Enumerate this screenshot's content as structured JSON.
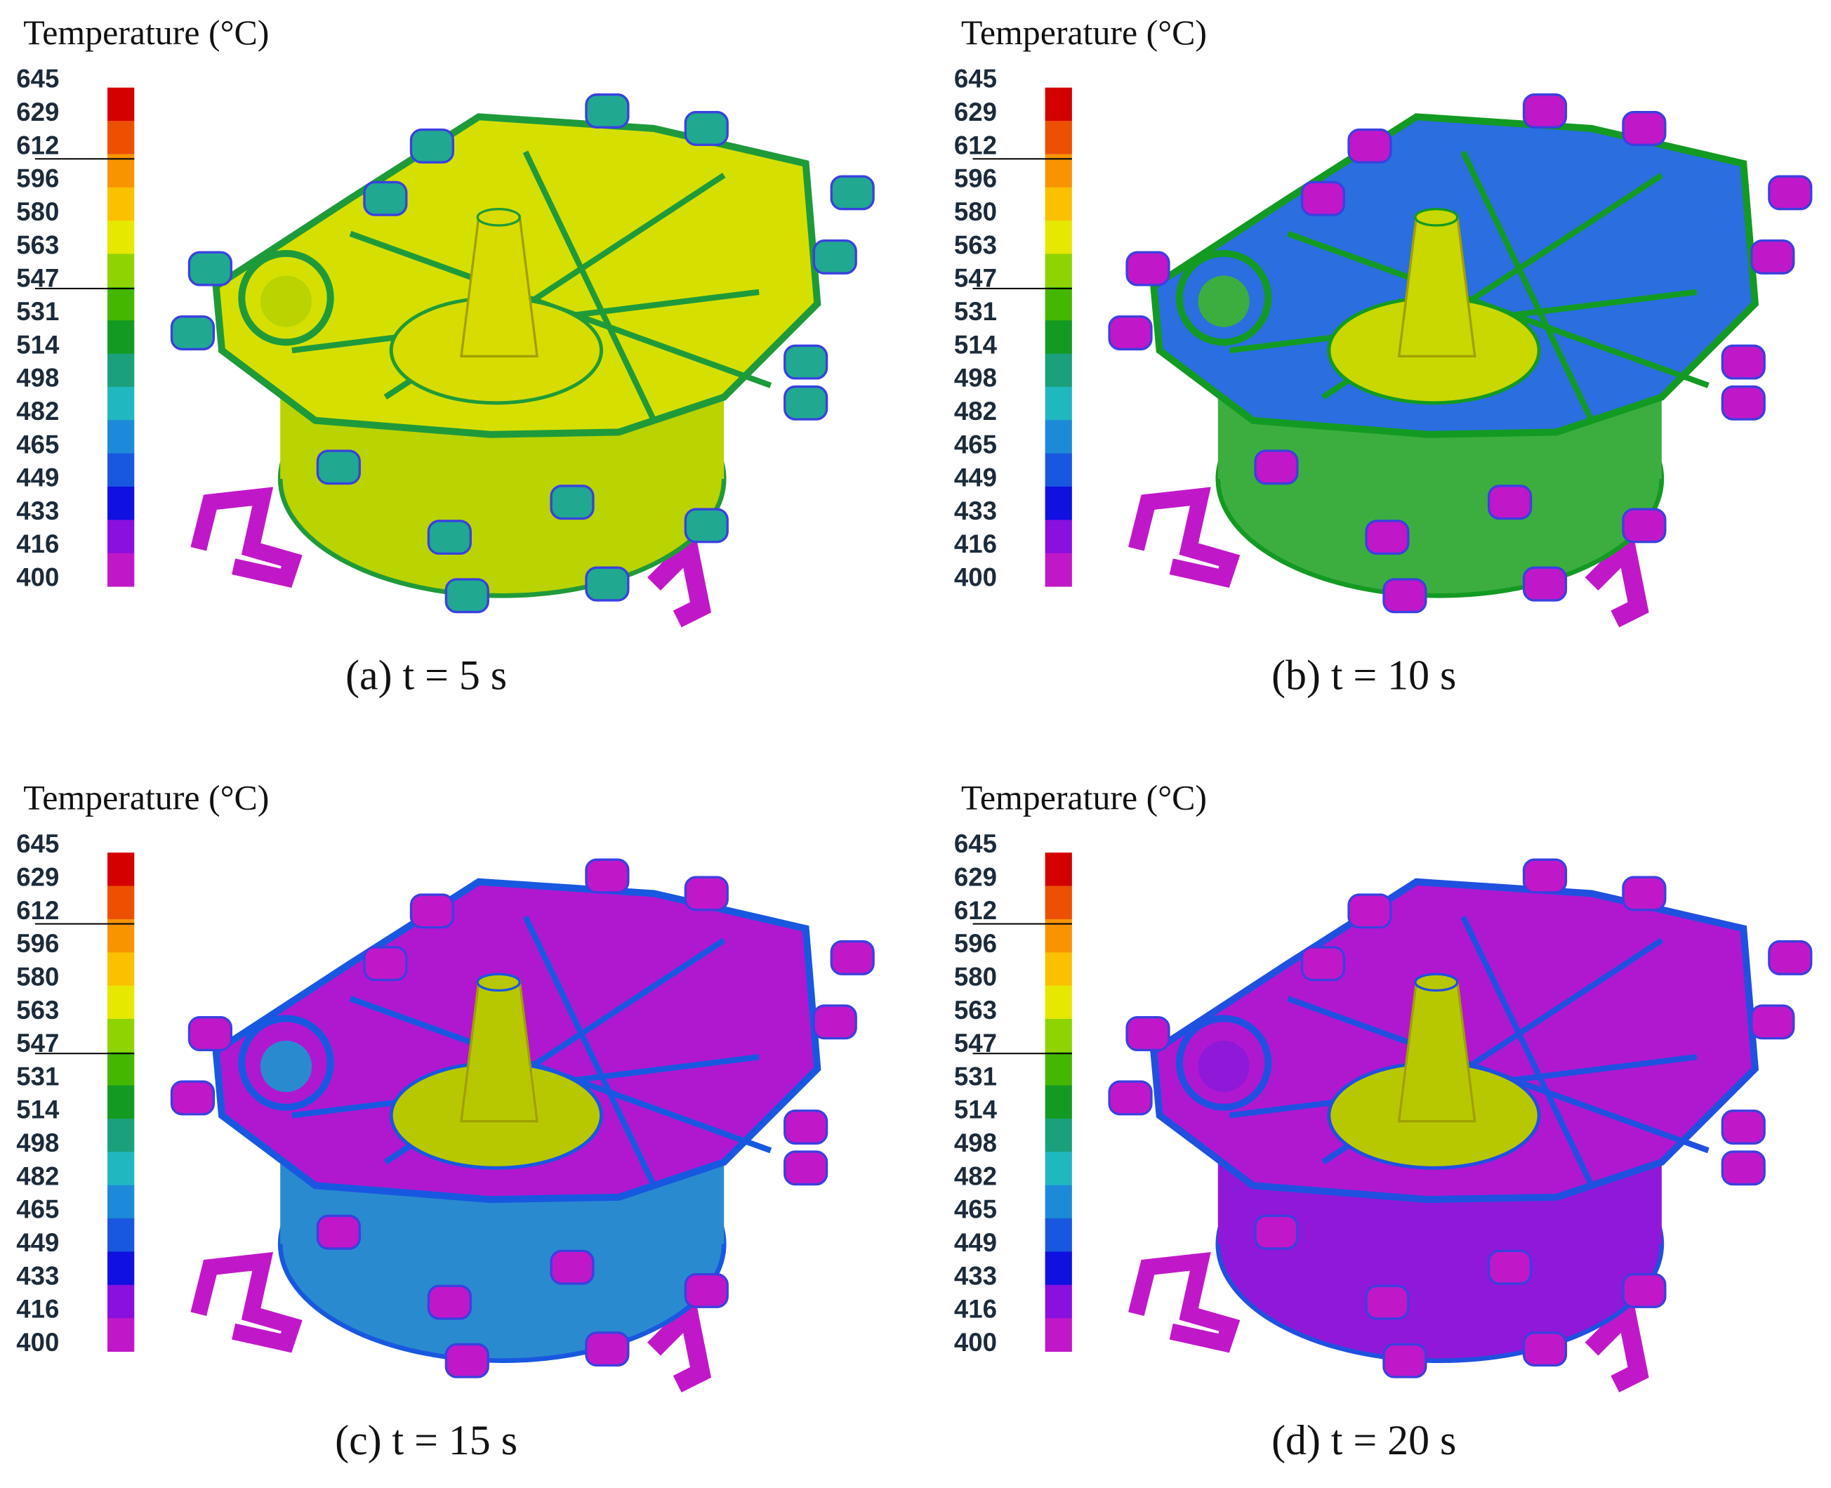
{
  "panels": [
    {
      "legend_title": "Temperature (°C)",
      "legend_labels": [
        "645",
        "629",
        "612",
        "596",
        "580",
        "563",
        "547",
        "531",
        "514",
        "498",
        "482",
        "465",
        "449",
        "433",
        "416",
        "400"
      ],
      "caption": "(a) t = 5 s"
    },
    {
      "legend_title": "Temperature (°C)",
      "legend_labels": [
        "645",
        "629",
        "612",
        "596",
        "580",
        "563",
        "547",
        "531",
        "514",
        "498",
        "482",
        "465",
        "449",
        "433",
        "416",
        "400"
      ],
      "caption": "(b) t = 10 s"
    },
    {
      "legend_title": "Temperature (°C)",
      "legend_labels": [
        "645",
        "629",
        "612",
        "596",
        "580",
        "563",
        "547",
        "531",
        "514",
        "498",
        "482",
        "465",
        "449",
        "433",
        "416",
        "400"
      ],
      "caption": "(c) t = 15 s"
    },
    {
      "legend_title": "Temperature (°C)",
      "legend_labels": [
        "645",
        "629",
        "612",
        "596",
        "580",
        "563",
        "547",
        "531",
        "514",
        "498",
        "482",
        "465",
        "449",
        "433",
        "416",
        "400"
      ],
      "caption": "(d) t = 20 s"
    }
  ],
  "legend_colors": [
    "#d40000",
    "#ec5000",
    "#f79400",
    "#fbc000",
    "#e6e800",
    "#8fd400",
    "#44b800",
    "#139a22",
    "#1aa07a",
    "#20b8c0",
    "#1c8ad8",
    "#1858e0",
    "#1010e0",
    "#8a10e0",
    "#c018c8"
  ]
}
